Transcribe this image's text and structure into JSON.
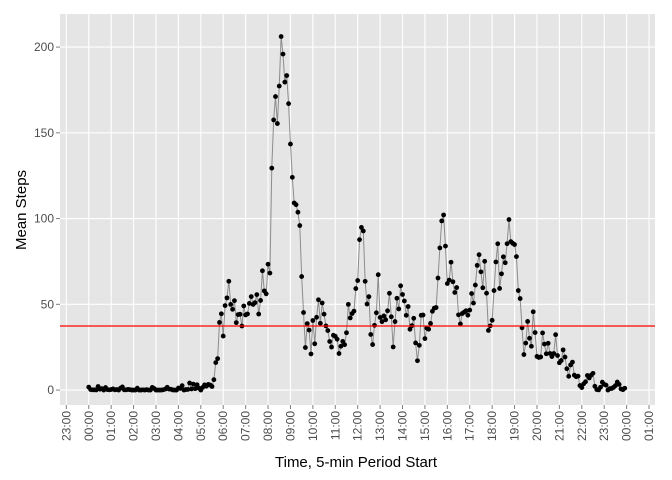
{
  "chart_data": {
    "type": "line",
    "x_label": "Time, 5-min Period Start",
    "y_label": "Mean Steps",
    "x": [
      0,
      5,
      10,
      15,
      20,
      25,
      30,
      35,
      40,
      45,
      50,
      55,
      60,
      65,
      70,
      75,
      80,
      85,
      90,
      95,
      100,
      105,
      110,
      115,
      120,
      125,
      130,
      135,
      140,
      145,
      150,
      155,
      160,
      165,
      170,
      175,
      180,
      185,
      190,
      195,
      200,
      205,
      210,
      215,
      220,
      225,
      230,
      235,
      240,
      245,
      250,
      255,
      260,
      265,
      270,
      275,
      280,
      285,
      290,
      295,
      300,
      305,
      310,
      315,
      320,
      325,
      330,
      335,
      340,
      345,
      350,
      355,
      360,
      365,
      370,
      375,
      380,
      385,
      390,
      395,
      400,
      405,
      410,
      415,
      420,
      425,
      430,
      435,
      440,
      445,
      450,
      455,
      460,
      465,
      470,
      475,
      480,
      485,
      490,
      495,
      500,
      505,
      510,
      515,
      520,
      525,
      530,
      535,
      540,
      545,
      550,
      555,
      560,
      565,
      570,
      575,
      580,
      585,
      590,
      595,
      600,
      605,
      610,
      615,
      620,
      625,
      630,
      635,
      640,
      645,
      650,
      655,
      660,
      665,
      670,
      675,
      680,
      685,
      690,
      695,
      700,
      705,
      710,
      715,
      720,
      725,
      730,
      735,
      740,
      745,
      750,
      755,
      760,
      765,
      770,
      775,
      780,
      785,
      790,
      795,
      800,
      805,
      810,
      815,
      820,
      825,
      830,
      835,
      840,
      845,
      850,
      855,
      860,
      865,
      870,
      875,
      880,
      885,
      890,
      895,
      900,
      905,
      910,
      915,
      920,
      925,
      930,
      935,
      940,
      945,
      950,
      955,
      960,
      965,
      970,
      975,
      980,
      985,
      990,
      995,
      1000,
      1005,
      1010,
      1015,
      1020,
      1025,
      1030,
      1035,
      1040,
      1045,
      1050,
      1055,
      1060,
      1065,
      1070,
      1075,
      1080,
      1085,
      1090,
      1095,
      1100,
      1105,
      1110,
      1115,
      1120,
      1125,
      1130,
      1135,
      1140,
      1145,
      1150,
      1155,
      1160,
      1165,
      1170,
      1175,
      1180,
      1185,
      1190,
      1195,
      1200,
      1205,
      1210,
      1215,
      1220,
      1225,
      1230,
      1235,
      1240,
      1245,
      1250,
      1255,
      1260,
      1265,
      1270,
      1275,
      1280,
      1285,
      1290,
      1295,
      1300,
      1305,
      1310,
      1315,
      1320,
      1325,
      1330,
      1335,
      1340,
      1345,
      1350,
      1355,
      1360,
      1365,
      1370,
      1375,
      1380,
      1385,
      1390,
      1395,
      1400,
      1405,
      1410,
      1415,
      1420,
      1425,
      1430,
      1435
    ],
    "series": [
      {
        "color": "#000000",
        "line_color": "#8c8c8c",
        "values": [
          1.72,
          0.34,
          0.13,
          0.15,
          0.08,
          2.09,
          0.53,
          0.87,
          0,
          1.47,
          0.3,
          0.13,
          0.32,
          0.68,
          0.15,
          0.34,
          0,
          1.11,
          1.83,
          0.17,
          0.17,
          0.38,
          0.26,
          0,
          0,
          0,
          1.13,
          0,
          0,
          0.13,
          0,
          0.23,
          0,
          0,
          1.55,
          0.94,
          0,
          0,
          0,
          0,
          0.21,
          0.62,
          1.62,
          0.58,
          0.49,
          0.08,
          0,
          0,
          1.19,
          0.94,
          2.57,
          0,
          0.34,
          0.36,
          4.11,
          0.66,
          3.49,
          0.83,
          3.11,
          1.11,
          0,
          1.57,
          3,
          2.25,
          3.32,
          2.96,
          2.09,
          6.06,
          16.02,
          18.34,
          39.45,
          44.49,
          31.49,
          49.26,
          53.77,
          63.45,
          49.96,
          47.08,
          52.15,
          39.34,
          44.02,
          44.17,
          37.36,
          49.04,
          43.81,
          44.38,
          50.51,
          54.51,
          49.92,
          50.98,
          55.68,
          44.32,
          52.26,
          69.55,
          57.85,
          56.15,
          73.38,
          68.21,
          129.43,
          157.53,
          171.15,
          155.4,
          177.3,
          206.17,
          195.92,
          179.57,
          183.4,
          167.02,
          143.45,
          124.04,
          109.11,
          108.11,
          103.72,
          95.96,
          66.21,
          45.23,
          24.79,
          38.75,
          34.98,
          21.06,
          40.57,
          26.98,
          42.42,
          52.66,
          38.92,
          50.79,
          44.28,
          37.42,
          34.7,
          28.34,
          25.09,
          31.94,
          31.36,
          29.68,
          21.32,
          25.55,
          28.38,
          26.47,
          33.43,
          49.98,
          42.04,
          44.6,
          46.04,
          59.19,
          63.87,
          87.7,
          94.85,
          92.77,
          63.4,
          50.17,
          54.47,
          32.42,
          26.53,
          37.74,
          45.06,
          67.28,
          42.34,
          39.89,
          43.26,
          40.98,
          46.25,
          56.43,
          42.75,
          25.13,
          39.96,
          53.55,
          47.32,
          60.81,
          55.75,
          51.96,
          43.58,
          48.7,
          35.47,
          37.55,
          41.85,
          27.51,
          17.11,
          26.08,
          43.62,
          43.77,
          30.02,
          36.08,
          35.49,
          38.85,
          45.96,
          47.75,
          48.13,
          65.32,
          82.91,
          98.66,
          102.11,
          83.96,
          62.13,
          64.13,
          74.55,
          63.17,
          56.91,
          59.77,
          43.87,
          38.57,
          44.66,
          45.45,
          46.21,
          43.68,
          46.62,
          56.3,
          50.72,
          61.23,
          72.72,
          78.94,
          68.94,
          59.66,
          75.09,
          56.51,
          34.77,
          37.45,
          40.68,
          58.02,
          74.7,
          85.32,
          59.26,
          67.77,
          77.7,
          74.25,
          85.34,
          99.45,
          86.58,
          85.6,
          84.87,
          77.83,
          58.04,
          53.36,
          36.32,
          20.72,
          27.4,
          40.02,
          30.21,
          25.55,
          45.66,
          33.53,
          19.62,
          19.02,
          19.34,
          33.34,
          26.81,
          21.17,
          27.3,
          21.34,
          19.55,
          21.32,
          32.3,
          20.15,
          15.94,
          17.23,
          23.45,
          19.25,
          12.45,
          8.02,
          14.66,
          16.3,
          8.68,
          7.79,
          8.13,
          2.62,
          1.45,
          3.68,
          4.81,
          8.51,
          7.08,
          8.7,
          9.75,
          2.21,
          0.32,
          0.11,
          1.6,
          4.6,
          3.3,
          2.85,
          0,
          0.83,
          0.96,
          1.58,
          2.6,
          4.7,
          3.3,
          0.64,
          0.23,
          1.08
        ]
      }
    ],
    "hline": {
      "value": 37.38,
      "color": "#ff0000"
    },
    "xlim": [
      -77,
      1516
    ],
    "xticks": [
      {
        "value": -60,
        "label": "23:00"
      },
      {
        "value": 0,
        "label": "00:00"
      },
      {
        "value": 60,
        "label": "01:00"
      },
      {
        "value": 120,
        "label": "02:00"
      },
      {
        "value": 180,
        "label": "03:00"
      },
      {
        "value": 240,
        "label": "04:00"
      },
      {
        "value": 300,
        "label": "05:00"
      },
      {
        "value": 360,
        "label": "06:00"
      },
      {
        "value": 420,
        "label": "07:00"
      },
      {
        "value": 480,
        "label": "08:00"
      },
      {
        "value": 540,
        "label": "09:00"
      },
      {
        "value": 600,
        "label": "10:00"
      },
      {
        "value": 660,
        "label": "11:00"
      },
      {
        "value": 720,
        "label": "12:00"
      },
      {
        "value": 780,
        "label": "13:00"
      },
      {
        "value": 840,
        "label": "14:00"
      },
      {
        "value": 900,
        "label": "15:00"
      },
      {
        "value": 960,
        "label": "16:00"
      },
      {
        "value": 1020,
        "label": "17:00"
      },
      {
        "value": 1080,
        "label": "18:00"
      },
      {
        "value": 1140,
        "label": "19:00"
      },
      {
        "value": 1200,
        "label": "20:00"
      },
      {
        "value": 1260,
        "label": "21:00"
      },
      {
        "value": 1320,
        "label": "22:00"
      },
      {
        "value": 1380,
        "label": "23:00"
      },
      {
        "value": 1440,
        "label": "00:00"
      },
      {
        "value": 1500,
        "label": "01:00"
      }
    ],
    "ylim": [
      -8.7,
      219.3
    ],
    "yticks": [
      0,
      50,
      100,
      150,
      200
    ],
    "grid": true
  }
}
